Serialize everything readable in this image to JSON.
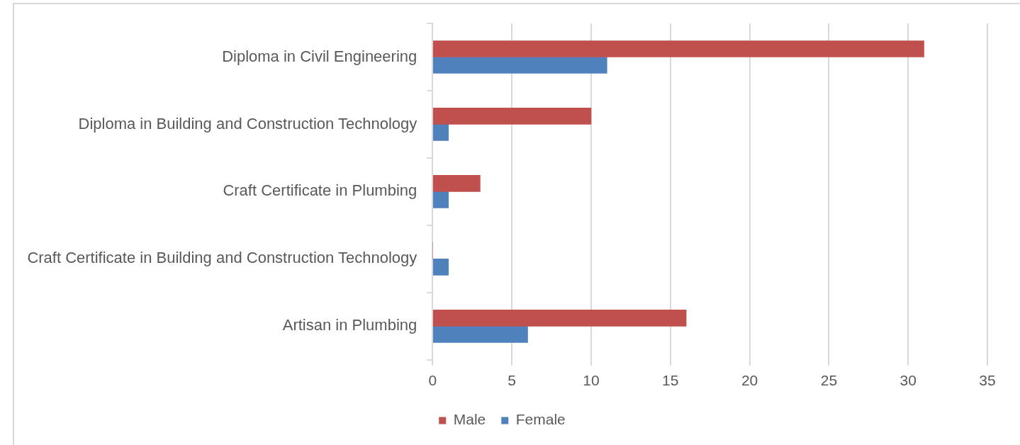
{
  "chart_data": {
    "type": "bar",
    "orientation": "horizontal",
    "categories": [
      "Diploma in Civil Engineering",
      "Diploma in Building and Construction Technology",
      "Craft Certificate in Plumbing",
      "Craft Certificate in Building and Construction Technology",
      "Artisan in Plumbing"
    ],
    "series": [
      {
        "name": "Male",
        "color": "#c0504d",
        "values": [
          31,
          10,
          3,
          0,
          16
        ]
      },
      {
        "name": "Female",
        "color": "#4f81bd",
        "values": [
          11,
          1,
          1,
          1,
          6
        ]
      }
    ],
    "xlim": [
      0,
      35
    ],
    "xticks": [
      0,
      5,
      10,
      15,
      20,
      25,
      30,
      35
    ],
    "grid": "x",
    "legend": "bottom"
  }
}
